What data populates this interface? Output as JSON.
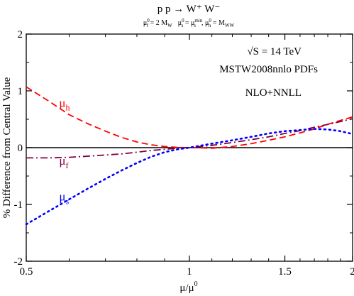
{
  "chart_data": {
    "type": "line",
    "title": "p p → W⁺ W⁻",
    "subtitle": {
      "line1": "μ",
      "line1_sub": "f",
      "line1_sup": "0",
      "line1_rest": " = 2 M",
      "line1_rest_sub": "W",
      "part2": "μ",
      "part2_sub": "s",
      "part2_sup": "0",
      "part2_eq": " = μ",
      "part2_eq_sub": "s",
      "part2_eq_sup": "min",
      "part2_sep": ", μ",
      "part2_h_sub": "h",
      "part2_h_sup": "0",
      "part2_end": " = M",
      "part2_end_sub": "WW"
    },
    "xlabel_main": "μ/μ",
    "xlabel_sup": "0",
    "ylabel": "% Difference from Central Value",
    "xscale": "log",
    "xlim": [
      0.5,
      2
    ],
    "ylim": [
      -2,
      2
    ],
    "xticks": [
      0.5,
      1,
      1.5,
      2
    ],
    "xtick_labels": [
      "0.5",
      "1",
      "1.5",
      "2"
    ],
    "yticks": [
      -2,
      -1,
      0,
      1,
      2
    ],
    "ytick_labels": [
      "-2",
      "-1",
      "0",
      "1",
      "2"
    ],
    "annotations": {
      "energy": "√S = 14 TeV",
      "pdf": "MSTW2008nnlo PDFs",
      "order": "NLO+NNLL"
    },
    "series": [
      {
        "name": "μ",
        "name_sub": "h",
        "color": "#ff0000",
        "dash": "dashed",
        "x": [
          0.5,
          0.55,
          0.6,
          0.65,
          0.7,
          0.75,
          0.8,
          0.85,
          0.9,
          0.95,
          1.0,
          1.1,
          1.2,
          1.3,
          1.4,
          1.5,
          1.6,
          1.7,
          1.8,
          1.9,
          2.0
        ],
        "y": [
          1.07,
          0.82,
          0.58,
          0.42,
          0.29,
          0.18,
          0.1,
          0.05,
          0.02,
          0.005,
          0.0,
          -0.01,
          0.02,
          0.07,
          0.13,
          0.19,
          0.26,
          0.33,
          0.41,
          0.48,
          0.54
        ]
      },
      {
        "name": "μ",
        "name_sub": "f",
        "color": "#800040",
        "dash": "dashdot",
        "x": [
          0.5,
          0.55,
          0.6,
          0.65,
          0.7,
          0.75,
          0.8,
          0.85,
          0.9,
          0.95,
          1.0,
          1.1,
          1.2,
          1.3,
          1.4,
          1.5,
          1.6,
          1.7,
          1.8,
          1.9,
          2.0
        ],
        "y": [
          -0.18,
          -0.18,
          -0.17,
          -0.15,
          -0.13,
          -0.11,
          -0.08,
          -0.05,
          -0.03,
          -0.01,
          0.0,
          0.04,
          0.09,
          0.14,
          0.19,
          0.25,
          0.3,
          0.36,
          0.41,
          0.46,
          0.51
        ]
      },
      {
        "name": "μ",
        "name_sub": "s",
        "color": "#0000ff",
        "dash": "dotted",
        "x": [
          0.5,
          0.55,
          0.6,
          0.65,
          0.7,
          0.75,
          0.8,
          0.85,
          0.9,
          0.95,
          1.0,
          1.1,
          1.2,
          1.3,
          1.4,
          1.5,
          1.6,
          1.7,
          1.8,
          1.9,
          2.0
        ],
        "y": [
          -1.35,
          -1.12,
          -0.91,
          -0.72,
          -0.55,
          -0.4,
          -0.27,
          -0.16,
          -0.08,
          -0.03,
          0.0,
          0.07,
          0.13,
          0.19,
          0.25,
          0.29,
          0.31,
          0.33,
          0.32,
          0.29,
          0.24
        ]
      }
    ],
    "series_label_positions": [
      {
        "x": 0.575,
        "y": 0.72
      },
      {
        "x": 0.575,
        "y": -0.3
      },
      {
        "x": 0.575,
        "y": -0.93
      }
    ],
    "zero_line": true,
    "grid": false
  }
}
